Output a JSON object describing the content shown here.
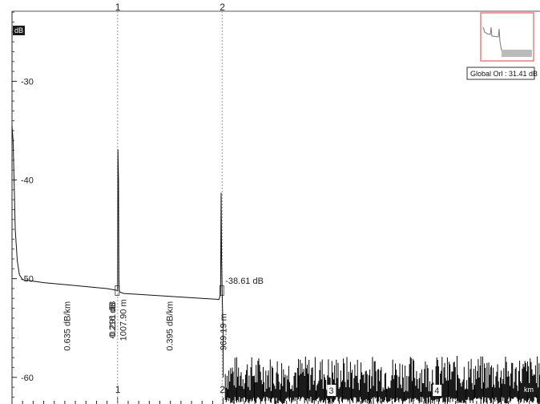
{
  "chart_data": {
    "type": "line",
    "xlabel": "km",
    "ylabel": "dB",
    "xlim": [
      0,
      5.0
    ],
    "ylim": [
      -62.7,
      -22.9
    ],
    "x_ticks": [
      {
        "value": 3,
        "label": "3"
      },
      {
        "value": 4,
        "label": "4"
      }
    ],
    "y_ticks": [
      {
        "value": -30,
        "label": "-30"
      },
      {
        "value": -40,
        "label": "-40"
      },
      {
        "value": -50,
        "label": "-50"
      },
      {
        "value": -60,
        "label": "-60"
      }
    ],
    "trace": {
      "x": [
        0.0,
        0.01,
        0.02,
        0.03,
        0.05,
        0.07,
        0.1,
        0.3,
        0.6,
        0.9,
        1.0,
        1.003,
        1.008,
        1.012,
        1.016,
        1.03,
        1.06,
        1.2,
        1.5,
        1.8,
        1.96,
        1.975,
        1.98,
        1.985,
        1.99,
        1.995,
        2.0,
        2.0
      ],
      "y": [
        -34.5,
        -36.0,
        -40.0,
        -45.0,
        -48.2,
        -49.6,
        -50.1,
        -50.4,
        -50.7,
        -51.0,
        -51.2,
        -36.9,
        -40.0,
        -50.0,
        -51.3,
        -51.4,
        -51.5,
        -51.6,
        -51.8,
        -52.0,
        -52.1,
        -51.6,
        -41.3,
        -48.0,
        -51.5,
        -53.5,
        -55.0,
        -60.0
      ]
    },
    "noise": {
      "x_start": 2.02,
      "x_end": 5.0,
      "y_low": -62.7,
      "y_high": -57.8
    },
    "events": [
      {
        "number": "1",
        "x": 1.0
      },
      {
        "number": "2",
        "x": 1.99
      }
    ],
    "segment_labels": [
      {
        "text": "0.635 dB/km",
        "x": 0.55,
        "y": -54.8
      },
      {
        "text": "0.395 dB/km",
        "x": 1.52,
        "y": -54.8
      }
    ],
    "event_labels": [
      {
        "text": "-0.291 dB",
        "x": 0.98,
        "y": -54.2
      },
      {
        "text": "0.216 dB",
        "x": 0.98,
        "y": -54.2
      },
      {
        "text": "1007.90 m",
        "x": 1.08,
        "y": -54.2
      },
      {
        "text": "969.19 m",
        "x": 2.03,
        "y": -55.4
      }
    ],
    "annotations": [
      {
        "text": "-38.61 dB",
        "x": 2.02,
        "y": -50.2
      }
    ],
    "inset": {
      "label": "Global Orl : 31.41 dB"
    }
  }
}
